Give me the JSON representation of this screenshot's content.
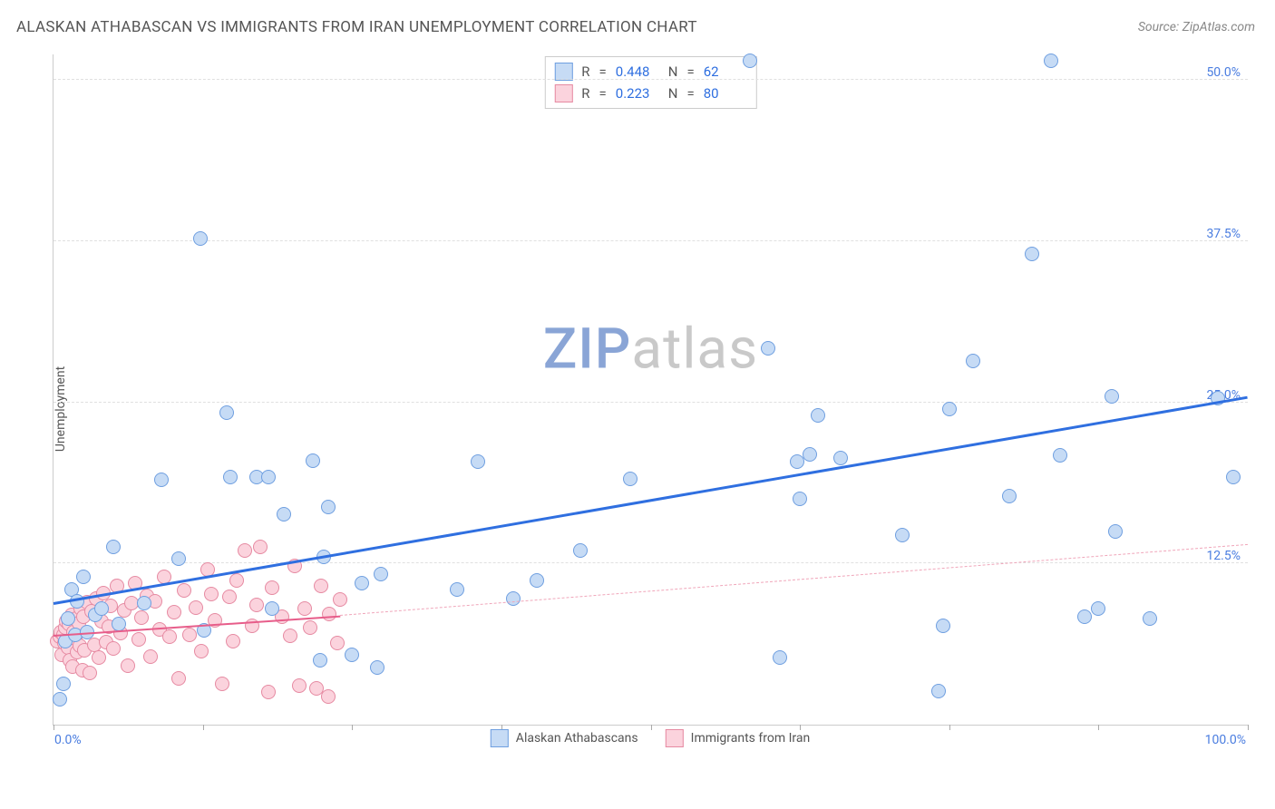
{
  "title": "ALASKAN ATHABASCAN VS IMMIGRANTS FROM IRAN UNEMPLOYMENT CORRELATION CHART",
  "source_prefix": "Source: ",
  "source_name": "ZipAtlas.com",
  "y_axis_label": "Unemployment",
  "watermark_a": "ZIP",
  "watermark_b": "atlas",
  "watermark_color_a": "#8aa5d6",
  "watermark_color_b": "#c9c9c9",
  "chart": {
    "type": "scatter",
    "xlim": [
      0,
      100
    ],
    "ylim": [
      0,
      52
    ],
    "x_ticks_pct": [
      0,
      12.5,
      25,
      37.5,
      50,
      62.5,
      75,
      87.5,
      100
    ],
    "y_gridlines": [
      {
        "v": 12.5,
        "label": "12.5%"
      },
      {
        "v": 25.0,
        "label": "25.0%"
      },
      {
        "v": 37.5,
        "label": "37.5%"
      },
      {
        "v": 50.0,
        "label": "50.0%"
      }
    ],
    "x_min_label": "0.0%",
    "x_max_label": "100.0%",
    "grid_color": "#e0e0e0",
    "axis_color": "#cccccc",
    "background": "#ffffff",
    "marker_radius": 8,
    "marker_stroke": 1.2
  },
  "series": [
    {
      "key": "alaskan",
      "label": "Alaskan Athabascans",
      "fill": "#c6dbf5",
      "stroke": "#6f9fe0",
      "R": "0.448",
      "N": "62",
      "trend": {
        "x1": 0,
        "y1": 9.5,
        "x2": 100,
        "y2": 25.5,
        "color": "#2f6fe0",
        "width": 3,
        "dashed": false
      },
      "points": [
        [
          0.5,
          2.0
        ],
        [
          0.8,
          3.2
        ],
        [
          1.0,
          6.5
        ],
        [
          1.2,
          8.2
        ],
        [
          1.5,
          10.5
        ],
        [
          1.8,
          7.0
        ],
        [
          2.0,
          9.6
        ],
        [
          2.5,
          11.5
        ],
        [
          2.8,
          7.2
        ],
        [
          3.5,
          8.5
        ],
        [
          4.0,
          9.0
        ],
        [
          5.0,
          13.8
        ],
        [
          5.5,
          7.8
        ],
        [
          7.6,
          9.4
        ],
        [
          9.0,
          19.0
        ],
        [
          10.5,
          12.9
        ],
        [
          12.3,
          37.7
        ],
        [
          12.6,
          7.3
        ],
        [
          14.5,
          24.2
        ],
        [
          14.8,
          19.2
        ],
        [
          17.0,
          19.2
        ],
        [
          18.0,
          19.2
        ],
        [
          18.3,
          9.0
        ],
        [
          19.3,
          16.3
        ],
        [
          21.7,
          20.5
        ],
        [
          22.3,
          5.0
        ],
        [
          22.6,
          13.0
        ],
        [
          23.0,
          16.9
        ],
        [
          25.0,
          5.4
        ],
        [
          25.8,
          11.0
        ],
        [
          27.1,
          4.4
        ],
        [
          27.4,
          11.7
        ],
        [
          33.8,
          10.5
        ],
        [
          35.5,
          20.4
        ],
        [
          38.5,
          9.8
        ],
        [
          40.5,
          11.2
        ],
        [
          44.1,
          13.5
        ],
        [
          48.3,
          19.1
        ],
        [
          58.3,
          51.5
        ],
        [
          59.8,
          29.2
        ],
        [
          60.8,
          5.2
        ],
        [
          62.3,
          20.4
        ],
        [
          62.5,
          17.5
        ],
        [
          63.3,
          21.0
        ],
        [
          64.0,
          24.0
        ],
        [
          65.9,
          20.7
        ],
        [
          71.1,
          14.7
        ],
        [
          74.1,
          2.6
        ],
        [
          74.5,
          7.7
        ],
        [
          75.0,
          24.5
        ],
        [
          77.0,
          28.2
        ],
        [
          80.0,
          17.7
        ],
        [
          81.9,
          36.5
        ],
        [
          83.5,
          51.5
        ],
        [
          84.3,
          20.9
        ],
        [
          86.3,
          8.4
        ],
        [
          87.5,
          9.0
        ],
        [
          88.6,
          25.5
        ],
        [
          88.9,
          15.0
        ],
        [
          91.8,
          8.2
        ],
        [
          97.5,
          25.3
        ],
        [
          98.8,
          19.2
        ]
      ]
    },
    {
      "key": "iran",
      "label": "Immigrants from Iran",
      "fill": "#fbd3dd",
      "stroke": "#e68aa2",
      "R": "0.223",
      "N": "80",
      "trend_solid": {
        "x1": 0,
        "y1": 7.0,
        "x2": 24,
        "y2": 8.5,
        "color": "#e75d8a",
        "width": 2.5,
        "dashed": false
      },
      "trend_dash": {
        "x1": 24,
        "y1": 8.5,
        "x2": 100,
        "y2": 14.0,
        "color": "#f0a6ba",
        "width": 1.5,
        "dashed": true
      },
      "points": [
        [
          0.3,
          6.5
        ],
        [
          0.5,
          6.8
        ],
        [
          0.6,
          7.2
        ],
        [
          0.7,
          5.4
        ],
        [
          0.8,
          7.0
        ],
        [
          0.9,
          6.3
        ],
        [
          1.0,
          7.5
        ],
        [
          1.1,
          8.0
        ],
        [
          1.2,
          6.0
        ],
        [
          1.3,
          7.8
        ],
        [
          1.4,
          5.0
        ],
        [
          1.5,
          8.5
        ],
        [
          1.6,
          4.5
        ],
        [
          1.7,
          7.2
        ],
        [
          1.8,
          6.7
        ],
        [
          1.9,
          8.2
        ],
        [
          2.0,
          5.6
        ],
        [
          2.1,
          7.9
        ],
        [
          2.2,
          6.1
        ],
        [
          2.3,
          9.0
        ],
        [
          2.4,
          4.2
        ],
        [
          2.5,
          8.4
        ],
        [
          2.6,
          5.8
        ],
        [
          2.8,
          9.5
        ],
        [
          3.0,
          4.0
        ],
        [
          3.2,
          8.8
        ],
        [
          3.4,
          6.2
        ],
        [
          3.6,
          9.8
        ],
        [
          3.8,
          5.2
        ],
        [
          4.0,
          8.0
        ],
        [
          4.2,
          10.2
        ],
        [
          4.4,
          6.4
        ],
        [
          4.6,
          7.6
        ],
        [
          4.8,
          9.2
        ],
        [
          5.0,
          5.9
        ],
        [
          5.3,
          10.8
        ],
        [
          5.6,
          7.1
        ],
        [
          5.9,
          8.9
        ],
        [
          6.2,
          4.6
        ],
        [
          6.5,
          9.4
        ],
        [
          6.8,
          11.0
        ],
        [
          7.1,
          6.6
        ],
        [
          7.4,
          8.3
        ],
        [
          7.8,
          10.0
        ],
        [
          8.1,
          5.3
        ],
        [
          8.5,
          9.6
        ],
        [
          8.9,
          7.4
        ],
        [
          9.3,
          11.5
        ],
        [
          9.7,
          6.8
        ],
        [
          10.1,
          8.7
        ],
        [
          10.5,
          3.6
        ],
        [
          10.9,
          10.4
        ],
        [
          11.4,
          7.0
        ],
        [
          11.9,
          9.1
        ],
        [
          12.4,
          5.7
        ],
        [
          12.9,
          12.0
        ],
        [
          13.2,
          10.1
        ],
        [
          13.5,
          8.1
        ],
        [
          14.1,
          3.2
        ],
        [
          14.7,
          9.9
        ],
        [
          15.0,
          6.5
        ],
        [
          15.3,
          11.2
        ],
        [
          16.0,
          13.5
        ],
        [
          16.6,
          7.7
        ],
        [
          17.0,
          9.3
        ],
        [
          17.3,
          13.8
        ],
        [
          18.0,
          2.5
        ],
        [
          18.3,
          10.6
        ],
        [
          19.1,
          8.4
        ],
        [
          19.8,
          6.9
        ],
        [
          20.2,
          12.3
        ],
        [
          20.6,
          3.0
        ],
        [
          21.0,
          9.0
        ],
        [
          21.5,
          7.5
        ],
        [
          22.0,
          2.8
        ],
        [
          22.4,
          10.8
        ],
        [
          23.0,
          2.2
        ],
        [
          23.1,
          8.6
        ],
        [
          23.8,
          6.3
        ],
        [
          24.0,
          9.7
        ]
      ]
    }
  ],
  "stats_legend": {
    "R_label": "R",
    "N_label": "N",
    "eq": "="
  },
  "bottom_legend": {
    "items": [
      "Alaskan Athabascans",
      "Immigrants from Iran"
    ]
  }
}
